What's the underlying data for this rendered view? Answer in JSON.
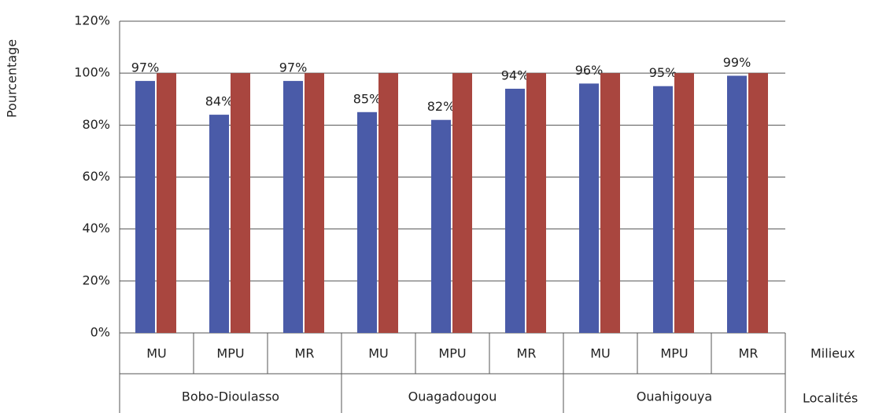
{
  "chart_data": {
    "type": "bar",
    "ylabel": "Pourcentage",
    "category_axis_labels": [
      "Milieux",
      "Localités"
    ],
    "categories": [
      "MU",
      "MPU",
      "MR",
      "MU",
      "MPU",
      "MR",
      "MU",
      "MPU",
      "MR"
    ],
    "groups": [
      "Bobo-Dioulasso",
      "Ouagadougou",
      "Ouahigouya"
    ],
    "series": [
      {
        "color": "#4a5ba8",
        "values": [
          97,
          84,
          97,
          85,
          82,
          94,
          96,
          95,
          99
        ],
        "value_labels": [
          "97%",
          "84%",
          "97%",
          "85%",
          "82%",
          "94%",
          "96%",
          "95%",
          "99%"
        ]
      },
      {
        "color": "#a9463f",
        "values": [
          100,
          100,
          100,
          100,
          100,
          100,
          100,
          100,
          100
        ]
      }
    ],
    "ylim": [
      0,
      120
    ],
    "yticks": [
      {
        "value": 0,
        "label": "0%"
      },
      {
        "value": 20,
        "label": "20%"
      },
      {
        "value": 40,
        "label": "40%"
      },
      {
        "value": 60,
        "label": "60%"
      },
      {
        "value": 80,
        "label": "80%"
      },
      {
        "value": 100,
        "label": "100%"
      },
      {
        "value": 120,
        "label": "120%"
      }
    ],
    "grid": true
  }
}
